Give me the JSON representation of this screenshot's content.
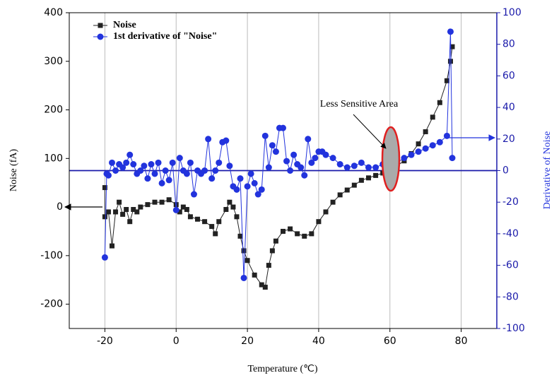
{
  "chart_data": {
    "type": "scatter-line",
    "xlabel": "Temperature (℃)",
    "ylabel": "Noise (fA)",
    "y2label": "Derivative of Noise",
    "annotation": "Less Sensitive Area",
    "xlim": [
      -30,
      90
    ],
    "xticks": [
      -20,
      0,
      20,
      40,
      60,
      80
    ],
    "ylim": [
      -250,
      400
    ],
    "yticks": [
      -200,
      -100,
      0,
      100,
      200,
      300,
      400
    ],
    "y2lim": [
      -100,
      100
    ],
    "y2ticks": [
      -100,
      -80,
      -60,
      -40,
      -20,
      0,
      20,
      40,
      60,
      80,
      100
    ],
    "grid": true,
    "hlines": [
      {
        "axis": "y2",
        "value": 0,
        "color": "#1a1aaa"
      }
    ],
    "series": [
      {
        "name": "Noise",
        "color": "#222222",
        "marker": "square",
        "x": [
          -20,
          -20,
          -19,
          -18,
          -17,
          -16,
          -15,
          -14,
          -13,
          -12,
          -11,
          -10,
          -8,
          -6,
          -4,
          -2,
          0,
          1,
          2,
          3,
          4,
          6,
          8,
          10,
          11,
          12,
          14,
          15,
          16,
          17,
          18,
          19,
          20,
          22,
          24,
          25,
          26,
          27,
          28,
          30,
          32,
          34,
          36,
          38,
          40,
          42,
          44,
          46,
          48,
          50,
          52,
          54,
          56,
          58,
          60,
          62,
          64,
          66,
          68,
          70,
          72,
          74,
          76,
          77,
          77.5
        ],
        "values": [
          40,
          -20,
          -10,
          -80,
          -10,
          10,
          -15,
          -5,
          -30,
          -5,
          -10,
          0,
          5,
          10,
          10,
          15,
          5,
          -10,
          0,
          -5,
          -20,
          -25,
          -30,
          -40,
          -55,
          -30,
          -5,
          10,
          0,
          -20,
          -60,
          -90,
          -110,
          -140,
          -160,
          -165,
          -120,
          -90,
          -70,
          -50,
          -45,
          -55,
          -60,
          -55,
          -30,
          -10,
          10,
          25,
          35,
          45,
          55,
          60,
          65,
          70,
          75,
          85,
          95,
          110,
          130,
          155,
          185,
          215,
          260,
          300,
          330
        ]
      },
      {
        "name": "1st derivative of \"Noise\"",
        "color": "#2233dd",
        "marker": "circle",
        "axis": "y2",
        "x": [
          -20,
          -19.5,
          -19,
          -18,
          -17,
          -16,
          -15,
          -14,
          -13,
          -12,
          -11,
          -10,
          -9,
          -8,
          -7,
          -6,
          -5,
          -4,
          -3,
          -2,
          -1,
          0,
          1,
          2,
          3,
          4,
          5,
          6,
          7,
          8,
          9,
          10,
          11,
          12,
          13,
          14,
          15,
          16,
          17,
          18,
          19,
          20,
          21,
          22,
          23,
          24,
          25,
          26,
          27,
          28,
          29,
          30,
          31,
          32,
          33,
          34,
          35,
          36,
          37,
          38,
          39,
          40,
          41,
          42,
          44,
          46,
          48,
          50,
          52,
          54,
          56,
          58,
          60,
          62,
          64,
          66,
          68,
          70,
          72,
          74,
          76,
          77,
          77.5
        ],
        "values": [
          -55,
          -2,
          -3,
          5,
          0,
          4,
          2,
          5,
          10,
          4,
          -2,
          0,
          3,
          -5,
          4,
          -2,
          5,
          -8,
          0,
          -6,
          5,
          -25,
          8,
          0,
          -2,
          5,
          -15,
          0,
          -2,
          0,
          20,
          -5,
          0,
          5,
          18,
          19,
          3,
          -10,
          -12,
          -5,
          -68,
          -10,
          -2,
          -8,
          -15,
          -12,
          22,
          2,
          16,
          12,
          27,
          27,
          6,
          0,
          10,
          4,
          2,
          -3,
          20,
          5,
          8,
          12,
          12,
          10,
          8,
          4,
          2,
          3,
          5,
          2,
          2,
          4,
          4,
          5,
          8,
          10,
          12,
          14,
          16,
          18,
          22,
          88,
          8
        ]
      }
    ]
  }
}
